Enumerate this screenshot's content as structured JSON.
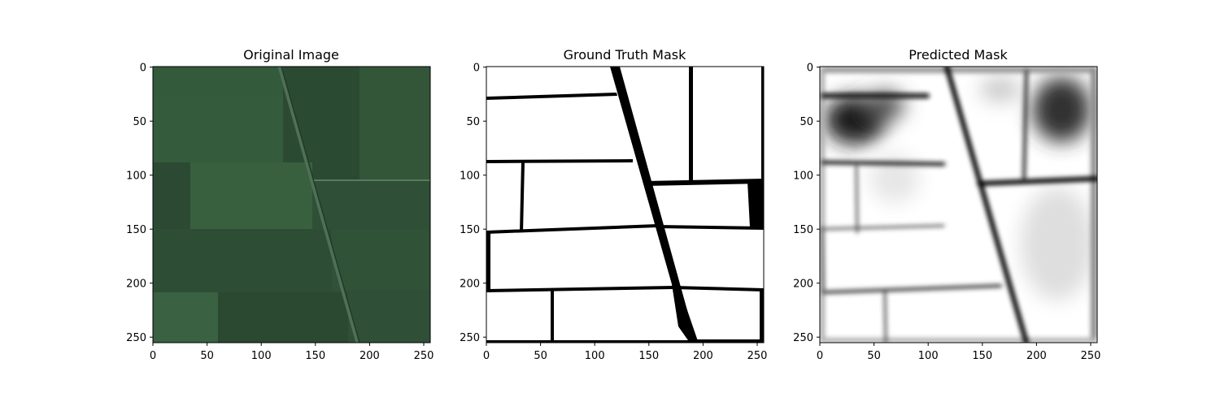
{
  "panels": [
    {
      "title": "Original Image",
      "kind": "rgb",
      "x_ticks": [
        "0",
        "50",
        "100",
        "150",
        "200",
        "250"
      ],
      "y_ticks": [
        "0",
        "50",
        "100",
        "150",
        "200",
        "250"
      ]
    },
    {
      "title": "Ground Truth Mask",
      "kind": "mask",
      "x_ticks": [
        "0",
        "50",
        "100",
        "150",
        "200",
        "250"
      ],
      "y_ticks": [
        "0",
        "50",
        "100",
        "150",
        "200",
        "250"
      ]
    },
    {
      "title": "Predicted Mask",
      "kind": "pred",
      "x_ticks": [
        "0",
        "50",
        "100",
        "150",
        "200",
        "250"
      ],
      "y_ticks": [
        "0",
        "50",
        "100",
        "150",
        "200",
        "250"
      ]
    }
  ],
  "colors": {
    "field_dark": "#2a4731",
    "field_light": "#3b5e43",
    "boundary_dark": "#000000",
    "mask_background": "#ffffff"
  }
}
